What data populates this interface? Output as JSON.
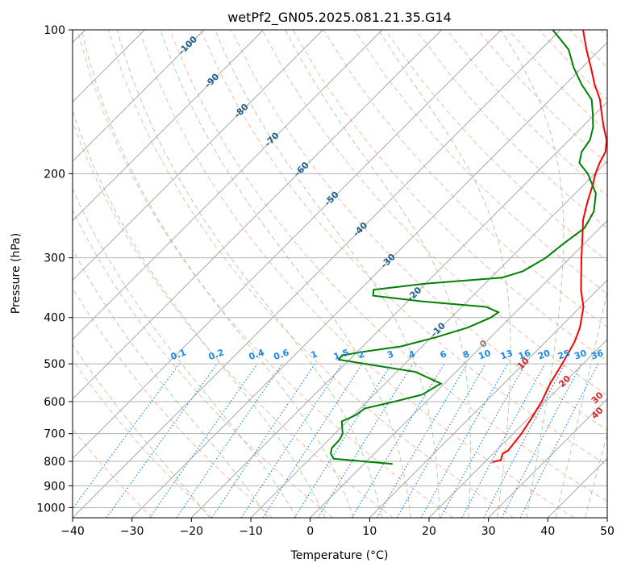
{
  "chart_data": {
    "type": "line",
    "subtype": "skew-t log-p",
    "title": "wetPf2_GN05.2025.081.21.35.G14",
    "xlabel": "Temperature (°C)",
    "ylabel": "Pressure (hPa)",
    "xlim": [
      -40,
      50
    ],
    "ylim": [
      1050,
      100
    ],
    "y_scale": "log",
    "grid": true,
    "x_ticks": [
      "−40",
      "−30",
      "−20",
      "−10",
      "0",
      "10",
      "20",
      "30",
      "40",
      "50"
    ],
    "y_ticks": [
      "100",
      "200",
      "300",
      "400",
      "500",
      "600",
      "700",
      "800",
      "900",
      "1000"
    ],
    "isotherm_labels": [
      "-100",
      "-90",
      "-80",
      "-70",
      "-60",
      "-50",
      "-40",
      "-30",
      "-20",
      "-10",
      "0",
      "10",
      "20",
      "30",
      "40"
    ],
    "mixing_ratio_labels": [
      "0.1",
      "0.2",
      "0.4",
      "0.6",
      "1",
      "1.5",
      "2",
      "3",
      "4",
      "6",
      "8",
      "10",
      "13",
      "16",
      "20",
      "25",
      "30",
      "36"
    ],
    "series": [
      {
        "kind": "temperature",
        "color": "#ff0000",
        "points": [
          [
            803,
            21.3
          ],
          [
            795,
            22.4
          ],
          [
            790,
            22.2
          ],
          [
            780,
            21.9
          ],
          [
            770,
            21.6
          ],
          [
            760,
            22.0
          ],
          [
            740,
            21.8
          ],
          [
            700,
            21.4
          ],
          [
            650,
            20.5
          ],
          [
            600,
            19.4
          ],
          [
            550,
            17.8
          ],
          [
            500,
            16.5
          ],
          [
            450,
            14.9
          ],
          [
            420,
            13.4
          ],
          [
            380,
            10.5
          ],
          [
            350,
            7.2
          ],
          [
            300,
            1.9
          ],
          [
            270,
            -1.6
          ],
          [
            250,
            -4.2
          ],
          [
            230,
            -6.4
          ],
          [
            210,
            -8.6
          ],
          [
            200,
            -9.9
          ],
          [
            190,
            -11.0
          ],
          [
            180,
            -11.9
          ],
          [
            170,
            -13.7
          ],
          [
            160,
            -16.3
          ],
          [
            150,
            -18.9
          ],
          [
            140,
            -21.6
          ],
          [
            130,
            -25.1
          ],
          [
            120,
            -28.5
          ],
          [
            110,
            -32.3
          ],
          [
            100,
            -36.2
          ]
        ]
      },
      {
        "kind": "dewpoint",
        "color": "#008000",
        "points": [
          [
            810,
            4.8
          ],
          [
            800,
            -0.6
          ],
          [
            790,
            -6.0
          ],
          [
            770,
            -7.4
          ],
          [
            750,
            -8.1
          ],
          [
            720,
            -8.2
          ],
          [
            700,
            -8.7
          ],
          [
            680,
            -9.8
          ],
          [
            660,
            -10.9
          ],
          [
            640,
            -9.6
          ],
          [
            620,
            -9.2
          ],
          [
            600,
            -5.4
          ],
          [
            580,
            -1.9
          ],
          [
            550,
            -0.6
          ],
          [
            520,
            -6.8
          ],
          [
            500,
            -16.7
          ],
          [
            490,
            -21.8
          ],
          [
            480,
            -22.0
          ],
          [
            470,
            -18.3
          ],
          [
            460,
            -13.6
          ],
          [
            440,
            -9.2
          ],
          [
            420,
            -5.5
          ],
          [
            400,
            -3.3
          ],
          [
            390,
            -2.9
          ],
          [
            380,
            -5.9
          ],
          [
            370,
            -17.7
          ],
          [
            360,
            -26.8
          ],
          [
            350,
            -27.7
          ],
          [
            340,
            -20.3
          ],
          [
            330,
            -8.1
          ],
          [
            320,
            -5.7
          ],
          [
            300,
            -4.1
          ],
          [
            280,
            -3.5
          ],
          [
            260,
            -2.6
          ],
          [
            240,
            -3.8
          ],
          [
            220,
            -6.5
          ],
          [
            200,
            -11.2
          ],
          [
            190,
            -14.4
          ],
          [
            180,
            -15.9
          ],
          [
            170,
            -16.5
          ],
          [
            160,
            -18.1
          ],
          [
            150,
            -20.4
          ],
          [
            140,
            -23.0
          ],
          [
            130,
            -27.3
          ],
          [
            120,
            -31.4
          ],
          [
            110,
            -35.3
          ],
          [
            100,
            -41.3
          ]
        ]
      }
    ],
    "colors": {
      "temperature": "#ff0000",
      "dewpoint": "#008000",
      "isotherm_grid": "#a0a0a0",
      "dry_adiabat": "#f4a582",
      "moist_adiabat": "#8fbc8f",
      "mixing_ratio": "#1e88e5",
      "isotherm_label_cold": "#1f5f8b",
      "isotherm_label_warm": "#d62728",
      "isotherm_label_zero": "#808080"
    }
  }
}
